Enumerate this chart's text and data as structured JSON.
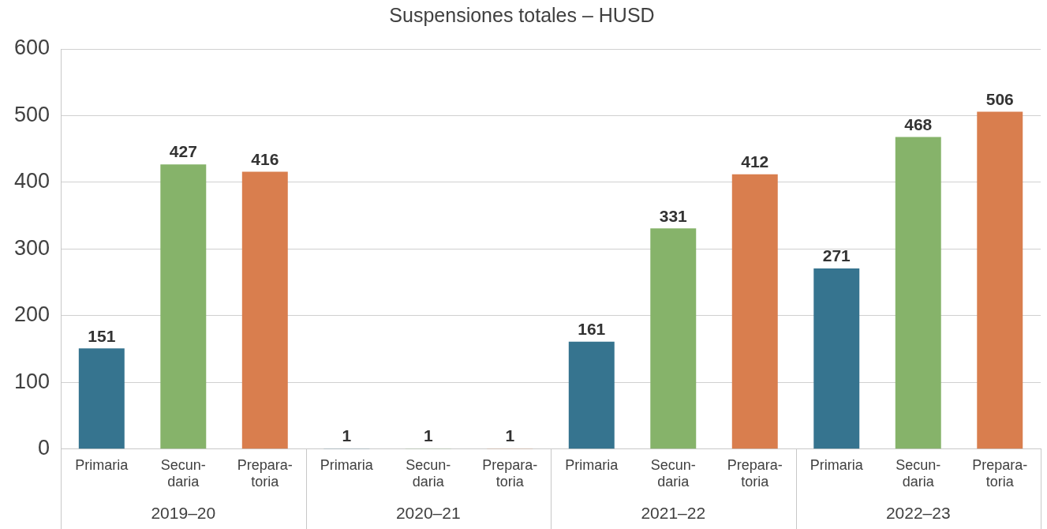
{
  "chart_data": {
    "type": "bar",
    "title": "Suspensiones totales – HUSD",
    "categories": [
      "Primaria",
      "Secun-daria",
      "Prepara-toria",
      "Primaria",
      "Secun-daria",
      "Prepara-toria",
      "Primaria",
      "Secun-daria",
      "Prepara-toria",
      "Primaria",
      "Secun-daria",
      "Prepara-toria"
    ],
    "values": [
      151,
      427,
      416,
      1,
      1,
      1,
      161,
      331,
      412,
      271,
      468,
      506
    ],
    "colors": [
      "#36748f",
      "#86b36a",
      "#d97e4e",
      "#36748f",
      "#86b36a",
      "#d97e4e",
      "#36748f",
      "#86b36a",
      "#d97e4e",
      "#36748f",
      "#86b36a",
      "#d97e4e"
    ],
    "annotations": [
      "2019–20",
      "2020–21",
      "2021–22",
      "2022–23"
    ],
    "ylim": [
      0,
      600
    ],
    "yticks": [
      0,
      100,
      200,
      300,
      400,
      500,
      600
    ],
    "grid": "y",
    "legend": false,
    "data_labels": true
  }
}
